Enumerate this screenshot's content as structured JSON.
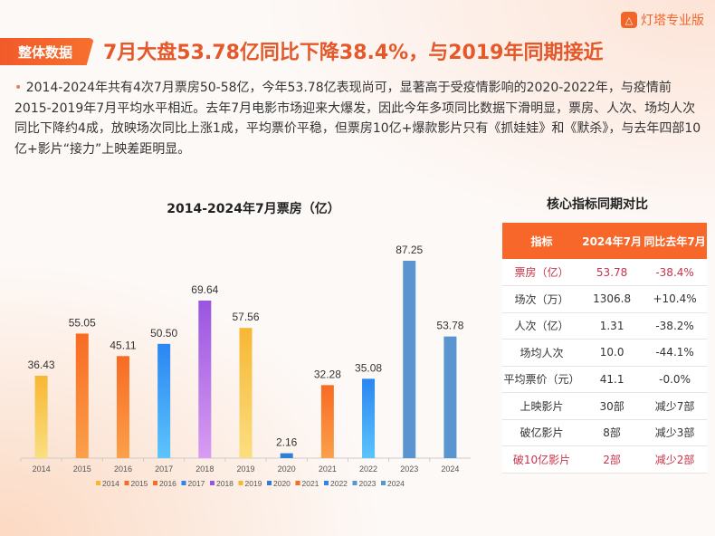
{
  "brand": {
    "logo_text": "灯塔专业版"
  },
  "header": {
    "tag": "整体数据",
    "headline": "7月大盘53.78亿同比下降38.4%，与2019年同期接近"
  },
  "summary": "2014-2024年共有4次7月票房50-58亿，今年53.78亿表现尚可，显著高于受疫情影响的2020-2022年，与疫情前2015-2019年7月平均水平相近。去年7月电影市场迎来大爆发，因此今年多项同比数据下滑明显，票房、人次、场均人次同比下降约4成，放映场次同比上涨1成，平均票价平稳，但票房10亿+爆款影片只有《抓娃娃》和《默杀》，与去年四部10亿+影片“接力”上映差距明显。",
  "chart_data": {
    "type": "bar",
    "title": "2014-2024年7月票房（亿）",
    "categories": [
      "2014",
      "2015",
      "2016",
      "2017",
      "2018",
      "2019",
      "2020",
      "2021",
      "2022",
      "2023",
      "2024"
    ],
    "values": [
      36.43,
      55.05,
      45.11,
      50.5,
      69.64,
      57.56,
      2.16,
      32.28,
      35.08,
      87.25,
      53.78
    ],
    "labels": [
      "36.43",
      "55.05",
      "45.11",
      "50.50",
      "69.64",
      "57.56",
      "2.16",
      "32.28",
      "35.08",
      "87.25",
      "53.78"
    ],
    "colors": [
      "#f7b733",
      "#f86b22",
      "#f86b22",
      "#2a86f2",
      "#9a55e0",
      "#f7b733",
      "#2f7fd6",
      "#f86b22",
      "#2a86f2",
      "#5b95d0",
      "#5b95d0"
    ],
    "colors_bottom": [
      "#fadf80",
      "#fba04a",
      "#fba04a",
      "#5cc4fb",
      "#d89cf2",
      "#fadf80",
      "#2f7fd6",
      "#fba04a",
      "#5cc4fb",
      "#5b95d0",
      "#5b95d0"
    ],
    "legend": [
      "2014",
      "2015",
      "2016",
      "2017",
      "2018",
      "2019",
      "2020",
      "2021",
      "2022",
      "2023",
      "2024"
    ],
    "legend_position": "bottom",
    "ylim": [
      0,
      87.25
    ],
    "grid": false
  },
  "table": {
    "title": "核心指标同期对比",
    "headers": [
      "指标",
      "2024年7月",
      "同比去年7月"
    ],
    "rows": [
      [
        "票房（亿）",
        "53.78",
        "-38.4%"
      ],
      [
        "场次（万）",
        "1306.8",
        "+10.4%"
      ],
      [
        "人次（亿）",
        "1.31",
        "-38.2%"
      ],
      [
        "场均人次",
        "10.0",
        "-44.1%"
      ],
      [
        "平均票价（元）",
        "41.1",
        "-0.0%"
      ],
      [
        "上映影片",
        "30部",
        "减少7部"
      ],
      [
        "破亿影片",
        "8部",
        "减少3部"
      ],
      [
        "破10亿影片",
        "2部",
        "减少2部"
      ]
    ],
    "highlight_color": "#c8334a"
  }
}
